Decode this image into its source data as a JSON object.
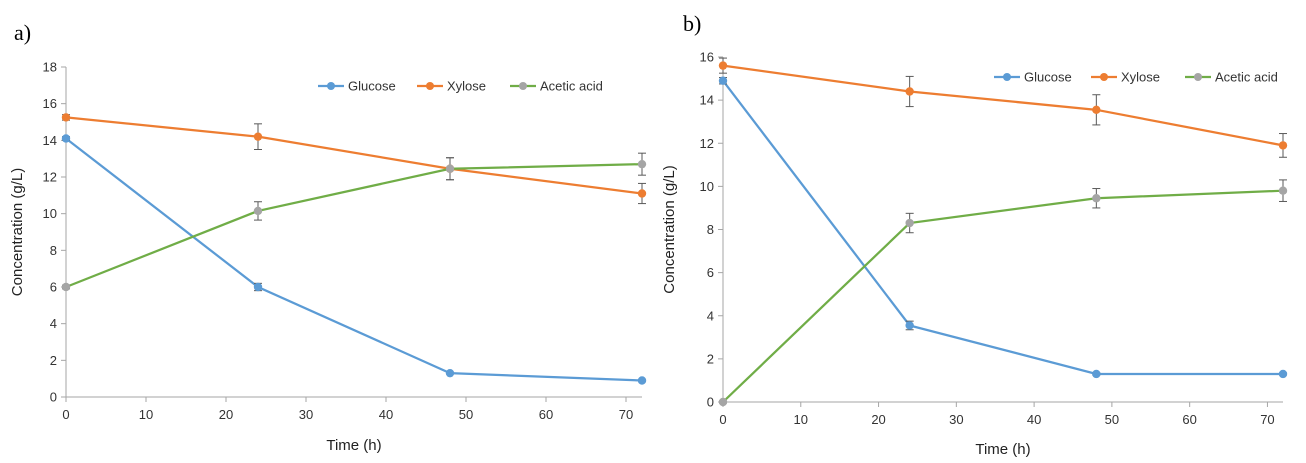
{
  "chart_data": [
    {
      "panel_label": "a)",
      "type": "line",
      "xlabel": "Time (h)",
      "ylabel": "Concentration (g/L)",
      "xlim": [
        0,
        72
      ],
      "ylim": [
        0,
        18
      ],
      "xticks": [
        "0",
        "10",
        "20",
        "30",
        "40",
        "50",
        "60",
        "70"
      ],
      "yticks": [
        "0",
        "2",
        "4",
        "6",
        "8",
        "10",
        "12",
        "14",
        "16",
        "18"
      ],
      "grid": false,
      "legend_position": "top-right",
      "x": [
        0,
        24,
        48,
        72
      ],
      "series": [
        {
          "name": "Glucose",
          "color": "#5B9BD5",
          "values": [
            14.1,
            6.0,
            1.3,
            0.9
          ],
          "errors": [
            0.1,
            0.2,
            0.05,
            0.05
          ]
        },
        {
          "name": "Xylose",
          "color": "#ED7D31",
          "values": [
            15.25,
            14.2,
            12.45,
            11.1
          ],
          "errors": [
            0.15,
            0.7,
            0.6,
            0.55
          ]
        },
        {
          "name": "Acetic acid",
          "color": "#70AD47",
          "marker_color": "#A5A5A5",
          "values": [
            6.0,
            10.15,
            12.45,
            12.7
          ],
          "errors": [
            0.1,
            0.5,
            0.6,
            0.6
          ]
        }
      ]
    },
    {
      "panel_label": "b)",
      "type": "line",
      "xlabel": "Time (h)",
      "ylabel": "Concentration (g/L)",
      "xlim": [
        0,
        72
      ],
      "ylim": [
        0,
        16
      ],
      "xticks": [
        "0",
        "10",
        "20",
        "30",
        "40",
        "50",
        "60",
        "70"
      ],
      "yticks": [
        "0",
        "2",
        "4",
        "6",
        "8",
        "10",
        "12",
        "14",
        "16"
      ],
      "grid": false,
      "legend_position": "top-right",
      "x": [
        0,
        24,
        48,
        72
      ],
      "series": [
        {
          "name": "Glucose",
          "color": "#5B9BD5",
          "values": [
            14.9,
            3.55,
            1.3,
            1.3
          ],
          "errors": [
            0.15,
            0.2,
            0.05,
            0.05
          ]
        },
        {
          "name": "Xylose",
          "color": "#ED7D31",
          "values": [
            15.6,
            14.4,
            13.55,
            11.9
          ],
          "errors": [
            0.35,
            0.7,
            0.7,
            0.55
          ]
        },
        {
          "name": "Acetic acid",
          "color": "#70AD47",
          "marker_color": "#A5A5A5",
          "values": [
            0.0,
            8.3,
            9.45,
            9.8
          ],
          "errors": [
            0.05,
            0.45,
            0.45,
            0.5
          ]
        }
      ]
    }
  ]
}
